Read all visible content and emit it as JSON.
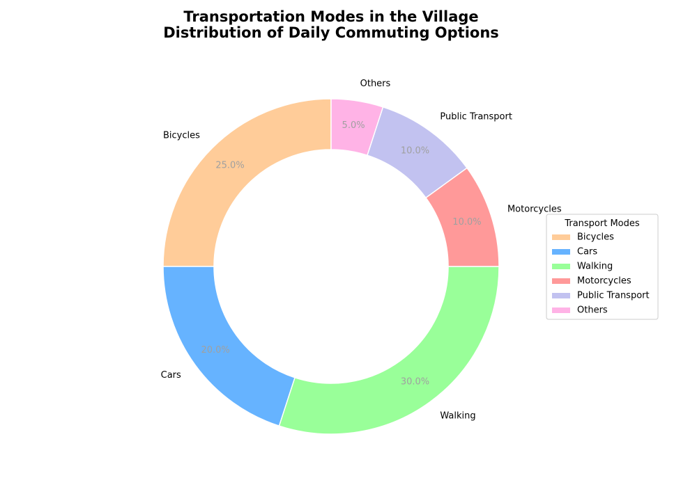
{
  "chart_data": {
    "type": "pie",
    "donut": true,
    "title": "Transportation Modes in the Village",
    "subtitle": "Distribution of Daily Commuting Options",
    "categories": [
      "Bicycles",
      "Cars",
      "Walking",
      "Motorcycles",
      "Public Transport",
      "Others"
    ],
    "values": [
      25,
      20,
      30,
      10,
      10,
      5
    ],
    "percent_labels": [
      "25.0%",
      "20.0%",
      "30.0%",
      "10.0%",
      "10.0%",
      "5.0%"
    ],
    "colors": [
      "#ffcc99",
      "#66b3ff",
      "#99ff99",
      "#ff9999",
      "#c2c2f0",
      "#ffb3e6"
    ],
    "start_angle_deg": 90,
    "direction": "counterclockwise",
    "legend": {
      "title": "Transport Modes",
      "placement": "center-right"
    }
  }
}
